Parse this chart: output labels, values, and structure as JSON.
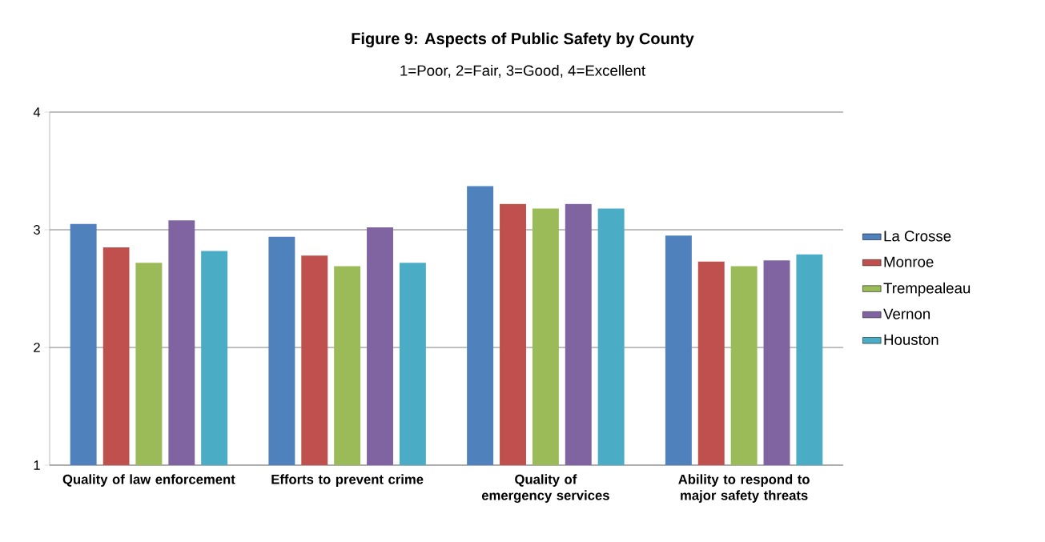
{
  "chart_data": {
    "type": "bar",
    "title": "Figure 9: Aspects of Public Safety by County",
    "subtitle": "1=Poor, 2=Fair, 3=Good, 4=Excellent",
    "categories": [
      "Quality of law enforcement",
      "Efforts to prevent crime",
      "Quality of emergency services",
      "Ability to respond to major safety threats"
    ],
    "series": [
      {
        "name": "La Crosse",
        "color": "#4f81bd",
        "values": [
          3.05,
          2.94,
          3.37,
          2.95
        ]
      },
      {
        "name": "Monroe",
        "color": "#c0504d",
        "values": [
          2.85,
          2.78,
          3.22,
          2.73
        ]
      },
      {
        "name": "Trempealeau",
        "color": "#9bbb59",
        "values": [
          2.72,
          2.69,
          3.18,
          2.69
        ]
      },
      {
        "name": "Vernon",
        "color": "#8064a2",
        "values": [
          3.08,
          3.02,
          3.22,
          2.74
        ]
      },
      {
        "name": "Houston",
        "color": "#4bacc6",
        "values": [
          2.82,
          2.72,
          3.18,
          2.79
        ]
      }
    ],
    "ylim": [
      1,
      4
    ],
    "yticks": [
      1,
      2,
      3,
      4
    ],
    "grid": "y",
    "legend": "right"
  }
}
